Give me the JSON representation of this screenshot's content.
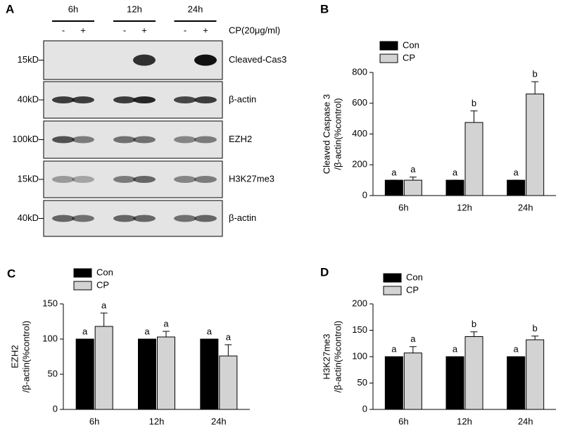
{
  "blot": {
    "panel": "A",
    "groups": [
      "6h",
      "12h",
      "24h"
    ],
    "signs": [
      "-",
      "+",
      "-",
      "+",
      "-",
      "+"
    ],
    "treatment": "CP(20μg/ml)",
    "rows": [
      {
        "marker": "15kD",
        "name": "Cleaved-Cas3"
      },
      {
        "marker": "40kD",
        "name": "β-actin"
      },
      {
        "marker": "100kD",
        "name": "EZH2"
      },
      {
        "marker": "15kD",
        "name": "H3K27me3"
      },
      {
        "marker": "40kD",
        "name": "β-actin"
      }
    ]
  },
  "chart_data": [
    {
      "type": "bar",
      "panel": "B",
      "ylabel": [
        "Cleaved Caspase 3",
        "/β-actin(%control)"
      ],
      "categories": [
        "6h",
        "12h",
        "24h"
      ],
      "ylim": [
        0,
        800
      ],
      "yticks": [
        0,
        200,
        400,
        600,
        800
      ],
      "series": [
        {
          "name": "Con",
          "color": "#000000",
          "values": [
            100,
            100,
            100
          ],
          "errors": [
            0,
            0,
            0
          ],
          "letters": [
            "a",
            "a",
            "a"
          ]
        },
        {
          "name": "CP",
          "color": "#d3d3d3",
          "values": [
            100,
            475,
            660
          ],
          "errors": [
            20,
            75,
            80
          ],
          "letters": [
            "a",
            "b",
            "b"
          ]
        }
      ]
    },
    {
      "type": "bar",
      "panel": "C",
      "ylabel": [
        "EZH2",
        "/β-actin(%control)"
      ],
      "categories": [
        "6h",
        "12h",
        "24h"
      ],
      "ylim": [
        0,
        150
      ],
      "yticks": [
        0,
        50,
        100,
        150
      ],
      "series": [
        {
          "name": "Con",
          "color": "#000000",
          "values": [
            100,
            100,
            100
          ],
          "errors": [
            0,
            0,
            0
          ],
          "letters": [
            "a",
            "a",
            "a"
          ]
        },
        {
          "name": "CP",
          "color": "#d3d3d3",
          "values": [
            118,
            103,
            76
          ],
          "errors": [
            19,
            8,
            16
          ],
          "letters": [
            "a",
            "a",
            "a"
          ]
        }
      ]
    },
    {
      "type": "bar",
      "panel": "D",
      "ylabel": [
        "H3K27me3",
        "/β-actin(%control)"
      ],
      "categories": [
        "6h",
        "12h",
        "24h"
      ],
      "ylim": [
        0,
        200
      ],
      "yticks": [
        0,
        50,
        100,
        150,
        200
      ],
      "series": [
        {
          "name": "Con",
          "color": "#000000",
          "values": [
            100,
            100,
            100
          ],
          "errors": [
            0,
            0,
            0
          ],
          "letters": [
            "a",
            "a",
            "a"
          ]
        },
        {
          "name": "CP",
          "color": "#d3d3d3",
          "values": [
            107,
            138,
            132
          ],
          "errors": [
            12,
            9,
            7
          ],
          "letters": [
            "a",
            "b",
            "b"
          ]
        }
      ]
    }
  ]
}
